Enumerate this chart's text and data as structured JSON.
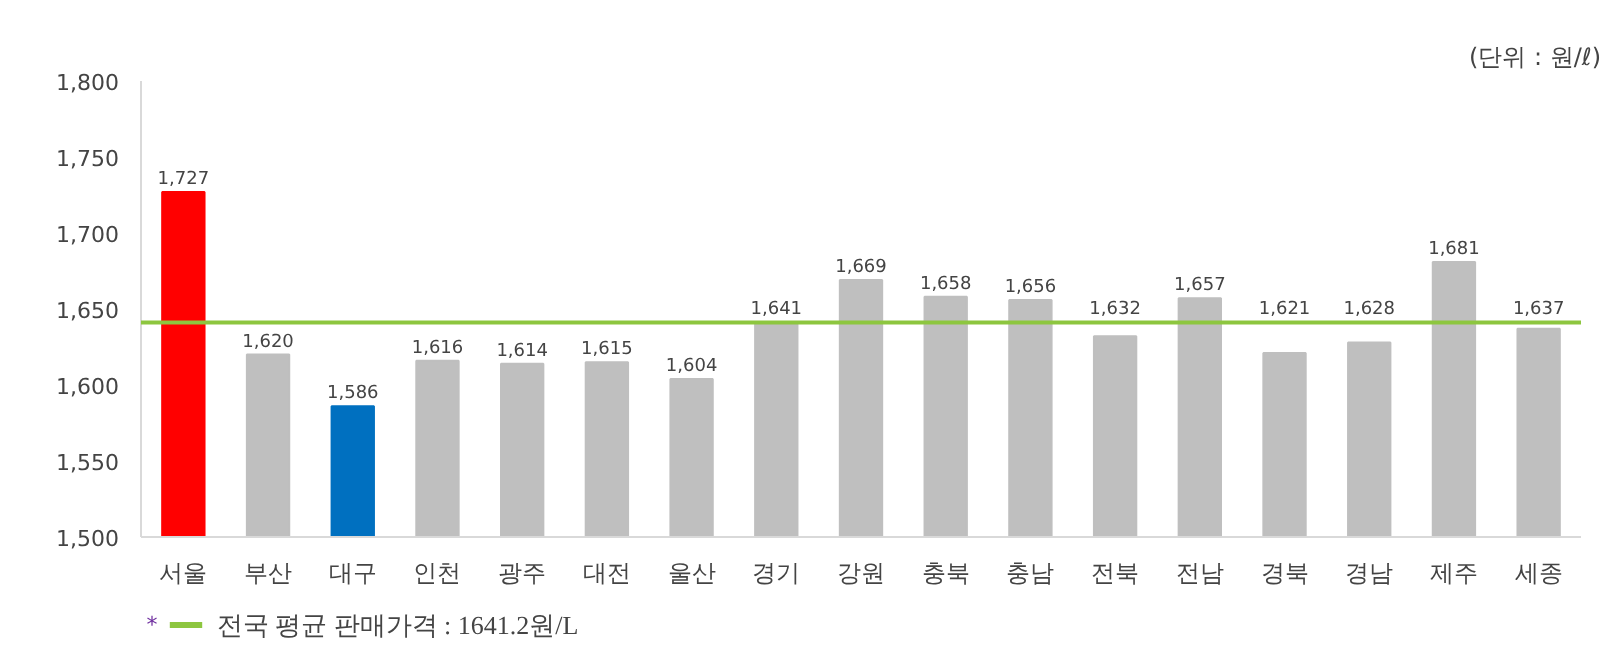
{
  "chart_data": {
    "type": "bar",
    "categories": [
      "서울",
      "부산",
      "대구",
      "인천",
      "광주",
      "대전",
      "울산",
      "경기",
      "강원",
      "충북",
      "충남",
      "전북",
      "전남",
      "경북",
      "경남",
      "제주",
      "세종"
    ],
    "values": [
      1727,
      1620,
      1586,
      1616,
      1614,
      1615,
      1604,
      1641,
      1669,
      1658,
      1656,
      1632,
      1657,
      1621,
      1628,
      1681,
      1637
    ],
    "colors": [
      "#ff0000",
      "#bfbfbf",
      "#0070c0",
      "#bfbfbf",
      "#bfbfbf",
      "#bfbfbf",
      "#bfbfbf",
      "#bfbfbf",
      "#bfbfbf",
      "#bfbfbf",
      "#bfbfbf",
      "#bfbfbf",
      "#bfbfbf",
      "#bfbfbf",
      "#bfbfbf",
      "#bfbfbf",
      "#bfbfbf"
    ],
    "value_labels": [
      "1,727",
      "1,620",
      "1,586",
      "1,616",
      "1,614",
      "1,615",
      "1,604",
      "1,641",
      "1,669",
      "1,658",
      "1,656",
      "1,632",
      "1,657",
      "1,621",
      "1,628",
      "1,681",
      "1,637"
    ],
    "ylim": [
      1500,
      1800
    ],
    "yticks": [
      {
        "value": 1500,
        "label": "1,500"
      },
      {
        "value": 1550,
        "label": "1,550"
      },
      {
        "value": 1600,
        "label": "1,600"
      },
      {
        "value": 1650,
        "label": "1,650"
      },
      {
        "value": 1700,
        "label": "1,700"
      },
      {
        "value": 1750,
        "label": "1,750"
      },
      {
        "value": 1800,
        "label": "1,800"
      }
    ],
    "ref_lines": [
      {
        "axis": "y",
        "value": 1641.2,
        "label": "전국 평균 판매가격 : 1641.2원/L",
        "color": "#8dc63f"
      }
    ],
    "annotations": [
      "(단위 : 원/ℓ)",
      "*"
    ],
    "grid": false
  }
}
